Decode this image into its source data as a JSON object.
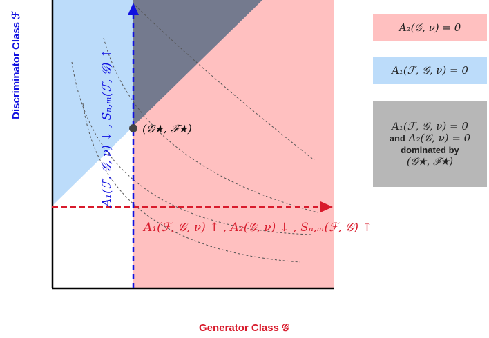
{
  "legend": {
    "a2": "A₂(𝒢, ν) = 0",
    "a1": "A₁(ℱ, 𝒢, ν) = 0",
    "dominated_line1": "A₁(ℱ, 𝒢, ν) = 0",
    "dominated_and": "and",
    "dominated_line2": "A₂(𝒢, ν) = 0",
    "dominated_by": "dominated by",
    "dominated_line3": "(𝒢★, ℱ★)"
  },
  "axes": {
    "x_title": "Generator Class 𝒢",
    "y_title": "Discriminator Class ℱ"
  },
  "labels": {
    "x_arrow": "A₁(ℱ, 𝒢, ν) ↑ , A₂(𝒢, ν) ↓ , Sₙ,ₘ(ℱ, 𝒢) ↑",
    "y_arrow": "A₁(ℱ, 𝒢, ν) ↓ , Sₙ,ₘ(ℱ, 𝒢) ↑",
    "point": "(𝒢★, ℱ★)"
  },
  "colors": {
    "red_region": "#ffc0c0",
    "blue_region": "#bcdcfa",
    "dominated_region": "#747a8e",
    "red_arrow": "#d81b2c",
    "blue_arrow": "#1010e0"
  }
}
